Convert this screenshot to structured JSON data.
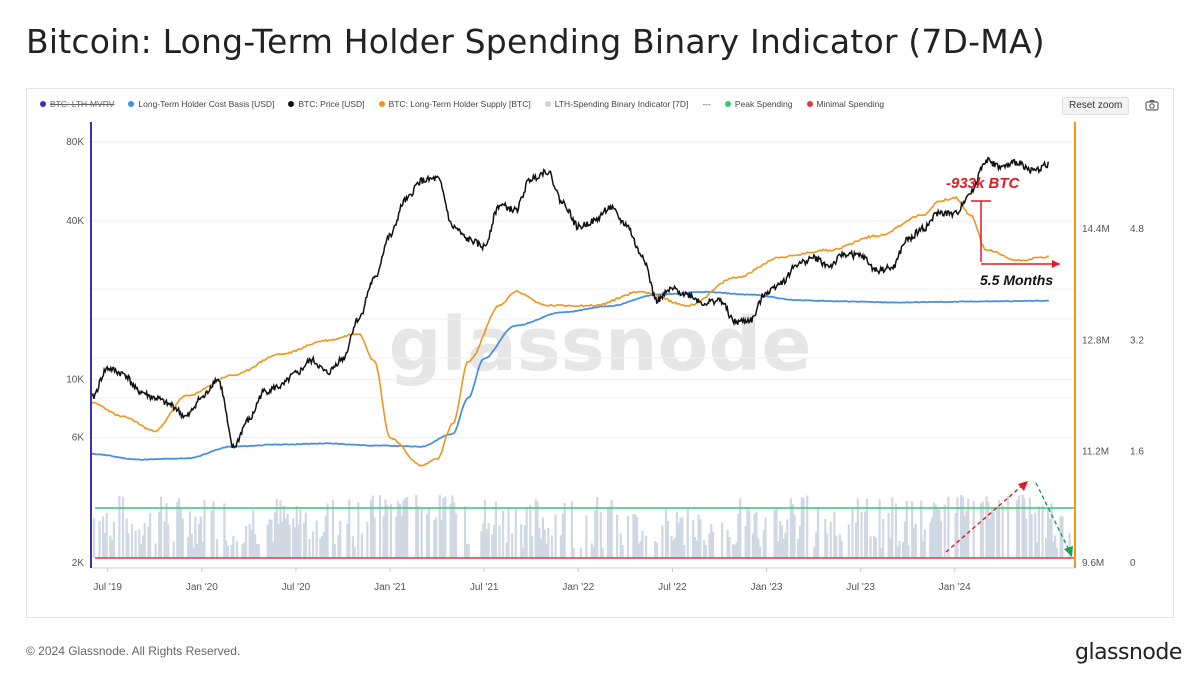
{
  "page": {
    "title": "Bitcoin: Long-Term Holder Spending Binary Indicator (7D-MA)",
    "copyright": "© 2024 Glassnode. All Rights Reserved.",
    "logo_text": "glassnode",
    "watermark": "glassnode",
    "reset_zoom_label": "Reset zoom",
    "camera_icon": "camera-icon"
  },
  "chart_data": {
    "type": "line",
    "legend": [
      {
        "name": "BTC: LTH-MVRV",
        "color": "#3b2fb0",
        "hidden": true,
        "marker": "dot"
      },
      {
        "name": "Long-Term Holder Cost Basis [USD]",
        "color": "#4a90e2",
        "marker": "dot"
      },
      {
        "name": "BTC: Price [USD]",
        "color": "#111111",
        "marker": "dot"
      },
      {
        "name": "BTC: Long-Term Holder Supply [BTC]",
        "color": "#f0951e",
        "marker": "dot"
      },
      {
        "name": "LTH-Spending Binary Indicator [7D]",
        "color": "#c9d3e0",
        "marker": "dot"
      },
      {
        "name": "---",
        "color": "#777777",
        "marker": "none"
      },
      {
        "name": "Peak Spending",
        "color": "#3cc47a",
        "marker": "dot"
      },
      {
        "name": "Minimal Spending",
        "color": "#e23a3a",
        "marker": "dot"
      }
    ],
    "x_axis": {
      "ticks": [
        "Jul '19",
        "Jan '20",
        "Jul '20",
        "Jan '21",
        "Jul '21",
        "Jan '22",
        "Jul '22",
        "Jan '23",
        "Jul '23",
        "Jan '24"
      ],
      "range": [
        "2019-06",
        "2024-08"
      ]
    },
    "y_axis_left": {
      "scale": "log",
      "range": [
        2000,
        80000
      ],
      "ticks": [
        "2K",
        "6K",
        "10K",
        "40K",
        "80K"
      ]
    },
    "y_axis_supply": {
      "range": [
        9600000,
        16000000
      ],
      "ticks": [
        "9.6M",
        "11.2M",
        "12.8M",
        "14.4M"
      ]
    },
    "y_axis_indicator": {
      "range": [
        0,
        6
      ],
      "ticks": [
        "0",
        "1.6",
        "3.2",
        "4.8"
      ]
    },
    "reference_lines": {
      "peak_spending": 0.8,
      "minimal_spending": 0.0
    },
    "price_series": {
      "name": "BTC: Price [USD]",
      "points": [
        [
          "2019-06",
          8500
        ],
        [
          "2019-07",
          11000
        ],
        [
          "2019-08",
          10500
        ],
        [
          "2019-09",
          9000
        ],
        [
          "2019-10",
          8500
        ],
        [
          "2019-11",
          8000
        ],
        [
          "2019-12",
          7200
        ],
        [
          "2020-01",
          8500
        ],
        [
          "2020-02",
          10000
        ],
        [
          "2020-03",
          5500
        ],
        [
          "2020-04",
          7000
        ],
        [
          "2020-05",
          9000
        ],
        [
          "2020-06",
          9400
        ],
        [
          "2020-07",
          10500
        ],
        [
          "2020-08",
          11800
        ],
        [
          "2020-09",
          10600
        ],
        [
          "2020-10",
          12000
        ],
        [
          "2020-11",
          17000
        ],
        [
          "2020-12",
          24000
        ],
        [
          "2021-01",
          35000
        ],
        [
          "2021-02",
          48000
        ],
        [
          "2021-03",
          57000
        ],
        [
          "2021-04",
          58000
        ],
        [
          "2021-05",
          38000
        ],
        [
          "2021-06",
          34000
        ],
        [
          "2021-07",
          32000
        ],
        [
          "2021-08",
          46000
        ],
        [
          "2021-09",
          44000
        ],
        [
          "2021-10",
          58000
        ],
        [
          "2021-11",
          62000
        ],
        [
          "2021-12",
          47000
        ],
        [
          "2022-01",
          38000
        ],
        [
          "2022-02",
          40000
        ],
        [
          "2022-03",
          45000
        ],
        [
          "2022-04",
          39000
        ],
        [
          "2022-05",
          30000
        ],
        [
          "2022-06",
          20000
        ],
        [
          "2022-07",
          22000
        ],
        [
          "2022-08",
          21000
        ],
        [
          "2022-09",
          19500
        ],
        [
          "2022-10",
          20000
        ],
        [
          "2022-11",
          16500
        ],
        [
          "2022-12",
          16800
        ],
        [
          "2023-01",
          21500
        ],
        [
          "2023-02",
          23500
        ],
        [
          "2023-03",
          27500
        ],
        [
          "2023-04",
          29000
        ],
        [
          "2023-05",
          27000
        ],
        [
          "2023-06",
          30000
        ],
        [
          "2023-07",
          29500
        ],
        [
          "2023-08",
          26000
        ],
        [
          "2023-09",
          26500
        ],
        [
          "2023-10",
          34000
        ],
        [
          "2023-11",
          37500
        ],
        [
          "2023-12",
          43000
        ],
        [
          "2024-01",
          42500
        ],
        [
          "2024-02",
          51000
        ],
        [
          "2024-03",
          68000
        ],
        [
          "2024-04",
          64000
        ],
        [
          "2024-05",
          67000
        ],
        [
          "2024-06",
          62000
        ],
        [
          "2024-07",
          66000
        ]
      ]
    },
    "cost_basis_series": {
      "name": "Long-Term Holder Cost Basis [USD]",
      "points": [
        [
          "2019-06",
          5200
        ],
        [
          "2019-09",
          4950
        ],
        [
          "2019-12",
          5000
        ],
        [
          "2020-03",
          5550
        ],
        [
          "2020-06",
          5650
        ],
        [
          "2020-09",
          5700
        ],
        [
          "2020-12",
          5600
        ],
        [
          "2021-03",
          5550
        ],
        [
          "2021-05",
          6200
        ],
        [
          "2021-06",
          8500
        ],
        [
          "2021-07",
          12000
        ],
        [
          "2021-09",
          16000
        ],
        [
          "2021-12",
          18000
        ],
        [
          "2022-03",
          19000
        ],
        [
          "2022-06",
          21000
        ],
        [
          "2022-09",
          21500
        ],
        [
          "2022-12",
          21000
        ],
        [
          "2023-03",
          20000
        ],
        [
          "2023-06",
          19800
        ],
        [
          "2023-09",
          19600
        ],
        [
          "2023-12",
          19700
        ],
        [
          "2024-03",
          19800
        ],
        [
          "2024-07",
          19900
        ]
      ]
    },
    "supply_series": {
      "name": "BTC: Long-Term Holder Supply [BTC]",
      "points": [
        [
          "2019-06",
          11900000
        ],
        [
          "2019-08",
          11700000
        ],
        [
          "2019-10",
          11500000
        ],
        [
          "2019-12",
          12000000
        ],
        [
          "2020-03",
          12300000
        ],
        [
          "2020-06",
          12600000
        ],
        [
          "2020-09",
          12800000
        ],
        [
          "2020-11",
          12900000
        ],
        [
          "2020-12",
          12500000
        ],
        [
          "2021-01",
          11400000
        ],
        [
          "2021-03",
          11000000
        ],
        [
          "2021-04",
          11100000
        ],
        [
          "2021-05",
          11600000
        ],
        [
          "2021-06",
          12500000
        ],
        [
          "2021-08",
          13300000
        ],
        [
          "2021-09",
          13500000
        ],
        [
          "2021-11",
          13300000
        ],
        [
          "2022-02",
          13300000
        ],
        [
          "2022-05",
          13500000
        ],
        [
          "2022-08",
          13300000
        ],
        [
          "2022-11",
          13700000
        ],
        [
          "2023-02",
          14000000
        ],
        [
          "2023-05",
          14100000
        ],
        [
          "2023-08",
          14300000
        ],
        [
          "2023-11",
          14600000
        ],
        [
          "2023-12",
          14800000
        ],
        [
          "2024-01",
          14850000
        ],
        [
          "2024-02",
          14600000
        ],
        [
          "2024-03",
          14100000
        ],
        [
          "2024-05",
          13950000
        ],
        [
          "2024-07",
          14000000
        ]
      ]
    },
    "annotations": [
      {
        "text": "-933k BTC",
        "color": "#e11b22"
      },
      {
        "text": "5.5 Months",
        "color": "#111111"
      }
    ]
  }
}
